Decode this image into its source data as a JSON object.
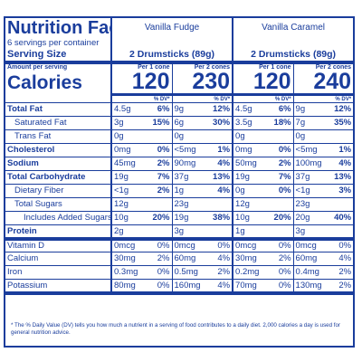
{
  "label": {
    "title": "Nutrition Facts",
    "servings": "6 servings per container",
    "serving_size_label": "Serving Size",
    "amount_per_serving": "Amount per serving",
    "calories_label": "Calories",
    "dv_header": "% DV*",
    "flavors": [
      {
        "name": "Vanilla Fudge",
        "serving": "2 Drumsticks (89g)",
        "cols": [
          {
            "per": "Per 1 cone",
            "calories": "120"
          },
          {
            "per": "Per 2 cones",
            "calories": "230"
          }
        ]
      },
      {
        "name": "Vanilla Caramel",
        "serving": "2 Drumsticks (89g)",
        "cols": [
          {
            "per": "Per 1 cone",
            "calories": "120"
          },
          {
            "per": "Per 2 cones",
            "calories": "240"
          }
        ]
      }
    ],
    "nutrients": [
      {
        "name": "Total Fat",
        "bold": true,
        "indent": 0,
        "v": [
          "4.5g",
          "6%",
          "9g",
          "12%",
          "4.5g",
          "6%",
          "9g",
          "12%"
        ]
      },
      {
        "name": "Saturated Fat",
        "bold": false,
        "indent": 1,
        "v": [
          "3g",
          "15%",
          "6g",
          "30%",
          "3.5g",
          "18%",
          "7g",
          "35%"
        ]
      },
      {
        "name": "Trans Fat",
        "bold": false,
        "indent": 1,
        "v": [
          "0g",
          "",
          "0g",
          "",
          "0g",
          "",
          "0g",
          ""
        ]
      },
      {
        "name": "Cholesterol",
        "bold": true,
        "indent": 0,
        "v": [
          "0mg",
          "0%",
          "<5mg",
          "1%",
          "0mg",
          "0%",
          "<5mg",
          "1%"
        ]
      },
      {
        "name": "Sodium",
        "bold": true,
        "indent": 0,
        "v": [
          "45mg",
          "2%",
          "90mg",
          "4%",
          "50mg",
          "2%",
          "100mg",
          "4%"
        ]
      },
      {
        "name": "Total Carbohydrate",
        "bold": true,
        "indent": 0,
        "v": [
          "19g",
          "7%",
          "37g",
          "13%",
          "19g",
          "7%",
          "37g",
          "13%"
        ]
      },
      {
        "name": "Dietary Fiber",
        "bold": false,
        "indent": 1,
        "v": [
          "<1g",
          "2%",
          "1g",
          "4%",
          "0g",
          "0%",
          "<1g",
          "3%"
        ]
      },
      {
        "name": "Total Sugars",
        "bold": false,
        "indent": 1,
        "v": [
          "12g",
          "",
          "23g",
          "",
          "12g",
          "",
          "23g",
          ""
        ]
      },
      {
        "name": "Includes Added Sugars",
        "bold": false,
        "indent": 2,
        "v": [
          "10g",
          "20%",
          "19g",
          "38%",
          "10g",
          "20%",
          "20g",
          "40%"
        ]
      },
      {
        "name": "Protein",
        "bold": true,
        "indent": 0,
        "v": [
          "2g",
          "",
          "3g",
          "",
          "1g",
          "",
          "3g",
          ""
        ]
      }
    ],
    "vitamins": [
      {
        "name": "Vitamin D",
        "v": [
          "0mcg",
          "0%",
          "0mcg",
          "0%",
          "0mcg",
          "0%",
          "0mcg",
          "0%"
        ]
      },
      {
        "name": "Calcium",
        "v": [
          "30mg",
          "2%",
          "60mg",
          "4%",
          "30mg",
          "2%",
          "60mg",
          "4%"
        ]
      },
      {
        "name": "Iron",
        "v": [
          "0.3mg",
          "0%",
          "0.5mg",
          "2%",
          "0.2mg",
          "0%",
          "0.4mg",
          "2%"
        ]
      },
      {
        "name": "Potassium",
        "v": [
          "80mg",
          "0%",
          "160mg",
          "4%",
          "70mg",
          "0%",
          "130mg",
          "2%"
        ]
      }
    ],
    "footnote": "* The % Daily Value (DV) tells you how much a nutrient in a serving of food contributes to a daily diet. 2,000 calories a day is used for general nutrition advice.",
    "color": "#1a3d9c"
  }
}
